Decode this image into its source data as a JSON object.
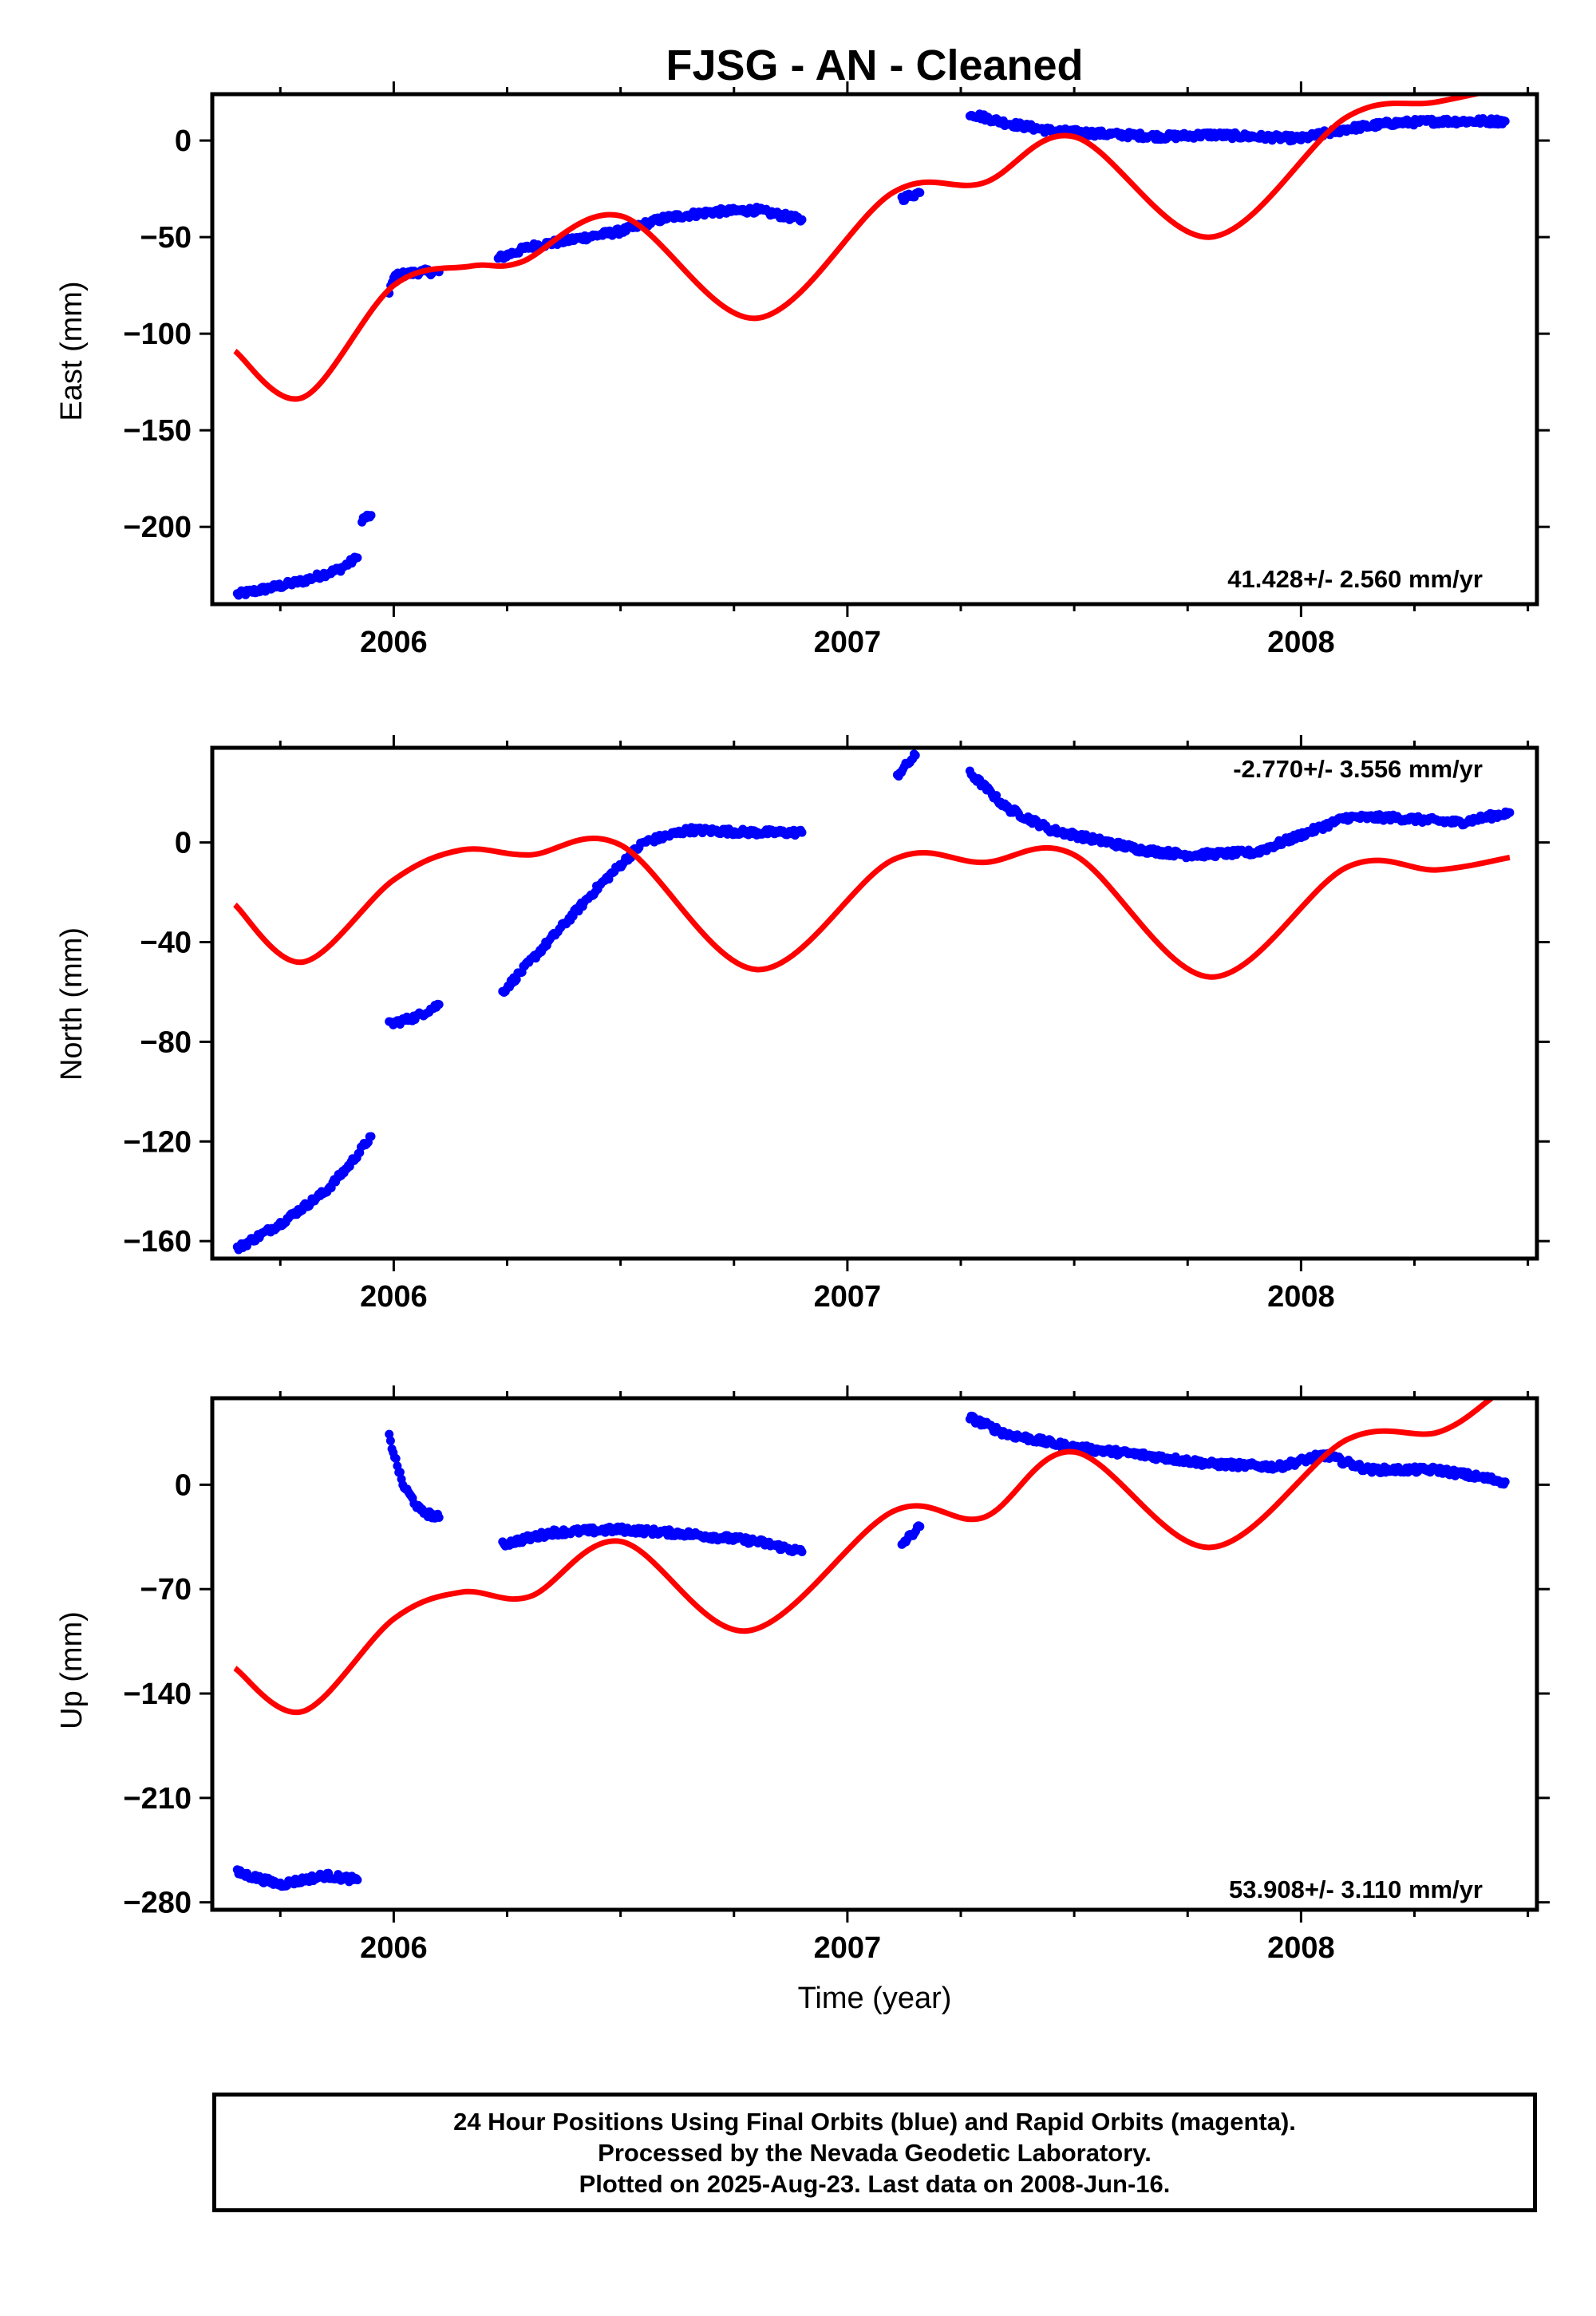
{
  "title": "FJSG  - AN - Cleaned",
  "xlabel": "Time (year)",
  "footer": {
    "lines": [
      "24 Hour Positions Using Final Orbits (blue) and Rapid Orbits (magenta).",
      "Processed by the Nevada Geodetic Laboratory.",
      "Plotted on 2025-Aug-23. Last data on 2008-Jun-16."
    ]
  },
  "colors": {
    "data_points": "#0000ff",
    "model_curve": "#ff0000",
    "axes": "#000000"
  },
  "chart_data": [
    {
      "type": "scatter",
      "name": "east",
      "ylabel": "East (mm)",
      "rate_label": "41.428+/- 2.560 mm/yr",
      "xlim": [
        2005.6,
        2008.52
      ],
      "ylim": [
        -240,
        24
      ],
      "xticks": [
        2006,
        2007,
        2008
      ],
      "xtick_labels": [
        "2006",
        "2007",
        "2008"
      ],
      "yticks": [
        -200,
        -150,
        -100,
        -50,
        0
      ],
      "ytick_labels": [
        "−200",
        "−150",
        "−100",
        "−50",
        "0"
      ],
      "point_segments": [
        {
          "x": [
            2005.655,
            2005.72,
            2005.8,
            2005.88,
            2005.92
          ],
          "y": [
            -235,
            -232,
            -228,
            -222,
            -216
          ]
        },
        {
          "x": [
            2005.93,
            2005.95
          ],
          "y": [
            -196,
            -194
          ]
        },
        {
          "x": [
            2005.99,
            2006.0,
            2006.06,
            2006.1
          ],
          "y": [
            -80,
            -70,
            -68,
            -68
          ]
        },
        {
          "x": [
            2006.23,
            2006.3,
            2006.4,
            2006.5,
            2006.6,
            2006.7,
            2006.8,
            2006.9
          ],
          "y": [
            -61,
            -55,
            -51,
            -47,
            -40,
            -37,
            -36,
            -41
          ]
        },
        {
          "x": [
            2007.12,
            2007.16
          ],
          "y": [
            -30,
            -27
          ]
        },
        {
          "x": [
            2007.27,
            2007.35,
            2007.45,
            2007.6,
            2007.7,
            2007.8,
            2007.9,
            2008.0,
            2008.1,
            2008.2,
            2008.3,
            2008.45
          ],
          "y": [
            14,
            9,
            5,
            3,
            2,
            3,
            2,
            1,
            6,
            9,
            10,
            10
          ]
        }
      ],
      "model": {
        "x": [
          2005.65,
          2005.8,
          2006.0,
          2006.17,
          2006.28,
          2006.5,
          2006.8,
          2007.1,
          2007.3,
          2007.5,
          2007.8,
          2008.1,
          2008.3,
          2008.5
        ],
        "y": [
          -109,
          -133,
          -75,
          -65,
          -63,
          -39,
          -92,
          -27,
          -22,
          2,
          -50,
          12,
          20,
          30
        ]
      }
    },
    {
      "type": "scatter",
      "name": "north",
      "ylabel": "North (mm)",
      "rate_label": "-2.770+/- 3.556 mm/yr",
      "xlim": [
        2005.6,
        2008.52
      ],
      "ylim": [
        -167,
        38
      ],
      "xticks": [
        2006,
        2007,
        2008
      ],
      "xtick_labels": [
        "2006",
        "2007",
        "2008"
      ],
      "yticks": [
        -160,
        -120,
        -80,
        -40,
        0
      ],
      "ytick_labels": [
        "−160",
        "−120",
        "−80",
        "−40",
        "0"
      ],
      "point_segments": [
        {
          "x": [
            2005.655,
            2005.75,
            2005.85,
            2005.9,
            2005.95
          ],
          "y": [
            -163,
            -153,
            -140,
            -130,
            -118
          ]
        },
        {
          "x": [
            2005.99,
            2006.05,
            2006.1
          ],
          "y": [
            -73,
            -70,
            -65
          ]
        },
        {
          "x": [
            2006.24,
            2006.35,
            2006.45,
            2006.55,
            2006.65,
            2006.8,
            2006.9
          ],
          "y": [
            -60,
            -38,
            -18,
            0,
            5,
            4,
            4
          ]
        },
        {
          "x": [
            2007.11,
            2007.15
          ],
          "y": [
            27,
            35
          ]
        },
        {
          "x": [
            2007.27,
            2007.35,
            2007.45,
            2007.55,
            2007.65,
            2007.75,
            2007.9,
            2008.0,
            2008.1,
            2008.2,
            2008.35,
            2008.46
          ],
          "y": [
            28,
            14,
            5,
            1,
            -3,
            -5,
            -4,
            3,
            10,
            10,
            8,
            12
          ]
        }
      ],
      "model": {
        "x": [
          2005.65,
          2005.8,
          2006.0,
          2006.15,
          2006.3,
          2006.5,
          2006.8,
          2007.1,
          2007.3,
          2007.5,
          2007.8,
          2008.1,
          2008.3,
          2008.46
        ],
        "y": [
          -25,
          -48,
          -15,
          -3,
          -5,
          -1,
          -51,
          -7,
          -8,
          -5,
          -54,
          -10,
          -11,
          -6
        ]
      }
    },
    {
      "type": "scatter",
      "name": "up",
      "ylabel": "Up (mm)",
      "rate_label": "53.908+/- 3.110 mm/yr",
      "xlim": [
        2005.6,
        2008.52
      ],
      "ylim": [
        -285,
        58
      ],
      "xticks": [
        2006,
        2007,
        2008
      ],
      "xtick_labels": [
        "2006",
        "2007",
        "2008"
      ],
      "yticks": [
        -280,
        -210,
        -140,
        -70,
        0
      ],
      "ytick_labels": [
        "−280",
        "−210",
        "−140",
        "−70",
        "0"
      ],
      "point_segments": [
        {
          "x": [
            2005.655,
            2005.75,
            2005.85,
            2005.92
          ],
          "y": [
            -260,
            -268,
            -262,
            -265
          ]
        },
        {
          "x": [
            2005.99,
            2006.02,
            2006.06,
            2006.1
          ],
          "y": [
            32,
            0,
            -18,
            -22
          ]
        },
        {
          "x": [
            2006.24,
            2006.35,
            2006.5,
            2006.65,
            2006.8,
            2006.9
          ],
          "y": [
            -40,
            -32,
            -30,
            -33,
            -38,
            -45
          ]
        },
        {
          "x": [
            2007.12,
            2007.16
          ],
          "y": [
            -40,
            -28
          ]
        },
        {
          "x": [
            2007.27,
            2007.35,
            2007.5,
            2007.65,
            2007.8,
            2007.95,
            2008.05,
            2008.15,
            2008.3,
            2008.45
          ],
          "y": [
            45,
            34,
            25,
            20,
            14,
            12,
            20,
            10,
            10,
            2
          ]
        }
      ],
      "model": {
        "x": [
          2005.65,
          2005.8,
          2006.0,
          2006.15,
          2006.3,
          2006.5,
          2006.78,
          2007.1,
          2007.3,
          2007.5,
          2007.8,
          2008.1,
          2008.3,
          2008.42
        ],
        "y": [
          -123,
          -152,
          -90,
          -72,
          -75,
          -38,
          -98,
          -18,
          -22,
          22,
          -42,
          30,
          35,
          58
        ]
      }
    }
  ]
}
